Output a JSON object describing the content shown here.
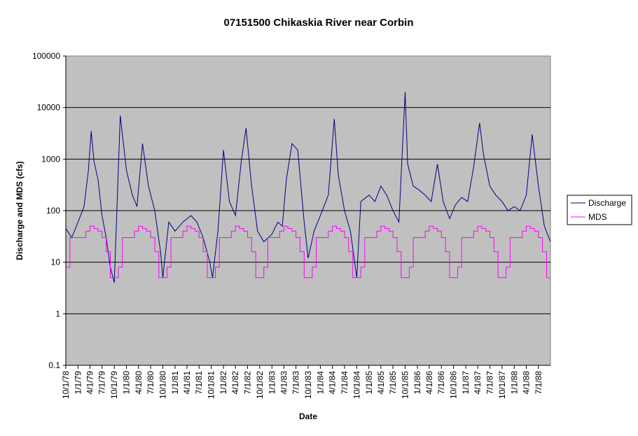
{
  "chart_data": {
    "type": "line",
    "title": "07151500 Chikaskia River near Corbin",
    "xlabel": "Date",
    "ylabel": "Discharge and MDS (cfs)",
    "y_scale": "log",
    "ylim": [
      0.1,
      100000
    ],
    "y_ticks": [
      "0.1",
      "1",
      "10",
      "100",
      "1000",
      "10000",
      "100000"
    ],
    "x_range": [
      "1978-10-01",
      "1988-09-30"
    ],
    "x_tick_labels": [
      "10/1/78",
      "1/1/79",
      "4/1/79",
      "7/1/79",
      "10/1/79",
      "1/1/80",
      "4/1/80",
      "7/1/80",
      "10/1/80",
      "1/1/81",
      "4/1/81",
      "7/1/81",
      "10/1/81",
      "1/1/82",
      "4/1/82",
      "7/1/82",
      "10/1/82",
      "1/1/83",
      "4/1/83",
      "7/1/83",
      "10/1/83",
      "1/1/84",
      "4/1/84",
      "7/1/84",
      "10/1/84",
      "1/1/85",
      "4/1/85",
      "7/1/85",
      "10/1/85",
      "1/1/86",
      "4/1/86",
      "7/1/86",
      "10/1/86",
      "1/1/87",
      "4/1/87",
      "7/1/87",
      "10/1/87",
      "1/1/88",
      "4/1/88",
      "7/1/88"
    ],
    "grid": "horizontal",
    "plot_background": "#c0c0c0",
    "legend_position": "right",
    "series": [
      {
        "name": "Discharge",
        "color": "#000080",
        "x": [
          "1978-10-01",
          "1978-11-15",
          "1979-01-01",
          "1979-02-15",
          "1979-03-20",
          "1979-04-10",
          "1979-05-01",
          "1979-06-01",
          "1979-07-01",
          "1979-08-01",
          "1979-09-01",
          "1979-10-01",
          "1979-11-15",
          "1980-01-01",
          "1980-02-15",
          "1980-03-20",
          "1980-05-01",
          "1980-06-15",
          "1980-08-01",
          "1980-09-15",
          "1980-10-01",
          "1980-11-15",
          "1981-01-01",
          "1981-03-01",
          "1981-05-01",
          "1981-06-15",
          "1981-08-01",
          "1981-09-20",
          "1981-10-10",
          "1981-11-20",
          "1982-01-01",
          "1982-02-15",
          "1982-04-01",
          "1982-05-15",
          "1982-06-20",
          "1982-08-01",
          "1982-09-15",
          "1982-11-01",
          "1983-01-01",
          "1983-02-15",
          "1983-03-20",
          "1983-04-20",
          "1983-06-01",
          "1983-07-15",
          "1983-09-01",
          "1983-10-01",
          "1983-11-15",
          "1984-01-01",
          "1984-03-01",
          "1984-04-15",
          "1984-05-15",
          "1984-07-01",
          "1984-08-15",
          "1984-10-01",
          "1984-11-01",
          "1985-01-01",
          "1985-02-15",
          "1985-04-01",
          "1985-05-15",
          "1985-07-01",
          "1985-08-15",
          "1985-10-01",
          "1985-10-20",
          "1985-12-01",
          "1986-01-15",
          "1986-03-01",
          "1986-04-15",
          "1986-06-01",
          "1986-07-15",
          "1986-09-01",
          "1986-10-15",
          "1986-12-01",
          "1987-01-15",
          "1987-03-01",
          "1987-04-15",
          "1987-05-15",
          "1987-07-01",
          "1987-08-15",
          "1987-10-01",
          "1987-11-15",
          "1988-01-01",
          "1988-02-15",
          "1988-04-01",
          "1988-05-15",
          "1988-07-01",
          "1988-08-15",
          "1988-09-30"
        ],
        "values": [
          45,
          30,
          60,
          120,
          600,
          3500,
          900,
          400,
          80,
          30,
          8,
          4,
          7000,
          600,
          200,
          120,
          2000,
          300,
          100,
          15,
          5,
          60,
          40,
          60,
          80,
          60,
          30,
          10,
          5,
          40,
          1500,
          150,
          80,
          900,
          4000,
          300,
          40,
          25,
          35,
          60,
          50,
          400,
          2000,
          1500,
          60,
          12,
          40,
          80,
          200,
          6000,
          500,
          100,
          40,
          5,
          150,
          200,
          150,
          300,
          200,
          100,
          60,
          20000,
          800,
          300,
          250,
          200,
          150,
          800,
          150,
          70,
          130,
          180,
          150,
          700,
          5000,
          1200,
          300,
          200,
          150,
          100,
          120,
          100,
          200,
          3000,
          300,
          50,
          25
        ]
      },
      {
        "name": "MDS",
        "color": "#ff00ff",
        "x": [
          "1978-10-01",
          "1978-11-01",
          "1978-12-01",
          "1979-01-01",
          "1979-02-01",
          "1979-03-01",
          "1979-04-01",
          "1979-05-01",
          "1979-06-01",
          "1979-07-01",
          "1979-08-01",
          "1979-09-01",
          "1979-10-01",
          "1979-11-01",
          "1979-12-01",
          "1980-01-01",
          "1980-02-01",
          "1980-03-01",
          "1980-04-01",
          "1980-05-01",
          "1980-06-01",
          "1980-07-01",
          "1980-08-01",
          "1980-09-01",
          "1980-10-01",
          "1980-11-01",
          "1980-12-01",
          "1981-01-01",
          "1981-02-01",
          "1981-03-01",
          "1981-04-01",
          "1981-05-01",
          "1981-06-01",
          "1981-07-01",
          "1981-08-01",
          "1981-09-01",
          "1981-10-01",
          "1981-11-01",
          "1981-12-01",
          "1982-01-01",
          "1982-02-01",
          "1982-03-01",
          "1982-04-01",
          "1982-05-01",
          "1982-06-01",
          "1982-07-01",
          "1982-08-01",
          "1982-09-01",
          "1982-10-01",
          "1982-11-01",
          "1982-12-01",
          "1983-01-01",
          "1983-02-01",
          "1983-03-01",
          "1983-04-01",
          "1983-05-01",
          "1983-06-01",
          "1983-07-01",
          "1983-08-01",
          "1983-09-01",
          "1983-10-01",
          "1983-11-01",
          "1983-12-01",
          "1984-01-01",
          "1984-02-01",
          "1984-03-01",
          "1984-04-01",
          "1984-05-01",
          "1984-06-01",
          "1984-07-01",
          "1984-08-01",
          "1984-09-01",
          "1984-10-01",
          "1984-11-01",
          "1984-12-01",
          "1985-01-01",
          "1985-02-01",
          "1985-03-01",
          "1985-04-01",
          "1985-05-01",
          "1985-06-01",
          "1985-07-01",
          "1985-08-01",
          "1985-09-01",
          "1985-10-01",
          "1985-11-01",
          "1985-12-01",
          "1986-01-01",
          "1986-02-01",
          "1986-03-01",
          "1986-04-01",
          "1986-05-01",
          "1986-06-01",
          "1986-07-01",
          "1986-08-01",
          "1986-09-01",
          "1986-10-01",
          "1986-11-01",
          "1986-12-01",
          "1987-01-01",
          "1987-02-01",
          "1987-03-01",
          "1987-04-01",
          "1987-05-01",
          "1987-06-01",
          "1987-07-01",
          "1987-08-01",
          "1987-09-01",
          "1987-10-01",
          "1987-11-01",
          "1987-12-01",
          "1988-01-01",
          "1988-02-01",
          "1988-03-01",
          "1988-04-01",
          "1988-05-01",
          "1988-06-01",
          "1988-07-01",
          "1988-08-01",
          "1988-09-01",
          "1988-09-30"
        ],
        "values": [
          8,
          30,
          30,
          30,
          30,
          40,
          50,
          45,
          40,
          30,
          16,
          5,
          5,
          8,
          30,
          30,
          30,
          40,
          50,
          45,
          40,
          30,
          16,
          5,
          5,
          8,
          30,
          30,
          30,
          40,
          50,
          45,
          40,
          30,
          16,
          5,
          5,
          8,
          30,
          30,
          30,
          40,
          50,
          45,
          40,
          30,
          16,
          5,
          5,
          8,
          30,
          30,
          30,
          40,
          50,
          45,
          40,
          30,
          16,
          5,
          5,
          8,
          30,
          30,
          30,
          40,
          50,
          45,
          40,
          30,
          16,
          5,
          5,
          8,
          30,
          30,
          30,
          40,
          50,
          45,
          40,
          30,
          16,
          5,
          5,
          8,
          30,
          30,
          30,
          40,
          50,
          45,
          40,
          30,
          16,
          5,
          5,
          8,
          30,
          30,
          30,
          40,
          50,
          45,
          40,
          30,
          16,
          5,
          5,
          8,
          30,
          30,
          30,
          40,
          50,
          45,
          40,
          30,
          16,
          5,
          5
        ]
      }
    ]
  }
}
